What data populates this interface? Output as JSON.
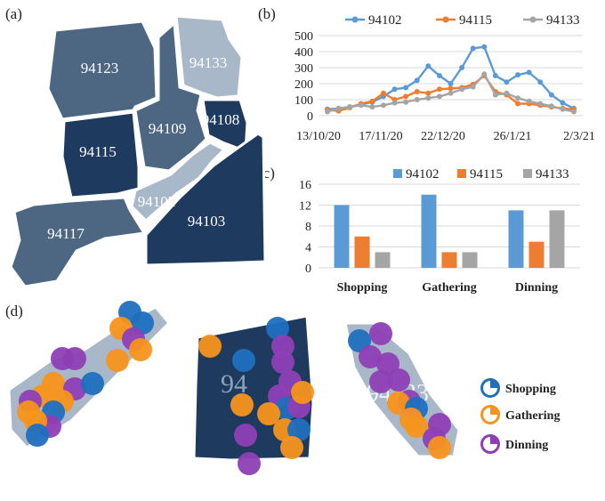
{
  "panels": {
    "a": "(a)",
    "b": "(b)",
    "c": "(c)",
    "d": "(d)"
  },
  "colors": {
    "series_94102": "#5b9bd5",
    "series_94115": "#ed7d31",
    "series_94133": "#a5a5a5",
    "map_dark": "#1f3a5f",
    "map_mid": "#4d6782",
    "map_light": "#a9b8c8",
    "shopping": "#1f6fbf",
    "gathering": "#f7931e",
    "dinning": "#8e3fb5"
  },
  "map": {
    "regions": [
      {
        "id": "94123",
        "label": "94123",
        "shade": "mid"
      },
      {
        "id": "94133",
        "label": "94133",
        "shade": "light"
      },
      {
        "id": "94109",
        "label": "94109",
        "shade": "mid"
      },
      {
        "id": "94108",
        "label": "94108",
        "shade": "dark"
      },
      {
        "id": "94115",
        "label": "94115",
        "shade": "dark"
      },
      {
        "id": "94102",
        "label": "94102",
        "shade": "light"
      },
      {
        "id": "94103",
        "label": "94103",
        "shade": "dark"
      },
      {
        "id": "94117",
        "label": "94117",
        "shade": "mid"
      }
    ]
  },
  "chart_data": [
    {
      "type": "line",
      "x_tick_labels": [
        "13/10/20",
        "17/11/20",
        "22/12/20",
        "26/1/21",
        "2/3/21"
      ],
      "ylim": [
        0,
        500
      ],
      "y_ticks": [
        0,
        100,
        200,
        300,
        400,
        500
      ],
      "grid": true,
      "legend_position": "top",
      "series": [
        {
          "name": "94102",
          "values": [
            40,
            45,
            55,
            70,
            85,
            120,
            165,
            175,
            220,
            310,
            250,
            200,
            300,
            420,
            430,
            250,
            210,
            255,
            270,
            210,
            130,
            80,
            45
          ]
        },
        {
          "name": "94115",
          "values": [
            35,
            30,
            50,
            75,
            90,
            140,
            100,
            120,
            150,
            140,
            165,
            170,
            175,
            195,
            250,
            150,
            130,
            75,
            75,
            65,
            55,
            45,
            40
          ]
        },
        {
          "name": "94133",
          "values": [
            25,
            45,
            55,
            65,
            55,
            65,
            80,
            85,
            100,
            110,
            120,
            140,
            165,
            180,
            260,
            130,
            140,
            110,
            90,
            75,
            60,
            40,
            25
          ]
        }
      ]
    },
    {
      "type": "bar",
      "categories": [
        "Shopping",
        "Gathering",
        "Dinning"
      ],
      "ylim": [
        0,
        16
      ],
      "y_ticks": [
        0,
        4,
        8,
        12,
        16
      ],
      "grid": true,
      "legend_position": "top",
      "series": [
        {
          "name": "94102",
          "values": [
            12,
            14,
            11
          ]
        },
        {
          "name": "94115",
          "values": [
            6,
            3,
            5
          ]
        },
        {
          "name": "94133",
          "values": [
            3,
            3,
            11
          ]
        }
      ]
    }
  ],
  "detail_maps": {
    "maps": [
      {
        "id": "94102",
        "watermark": ""
      },
      {
        "id": "94108",
        "watermark": "94"
      },
      {
        "id": "94133",
        "watermark": "94133"
      }
    ],
    "legend": [
      {
        "key": "shopping",
        "label": "Shopping"
      },
      {
        "key": "gathering",
        "label": "Gathering"
      },
      {
        "key": "dinning",
        "label": "Dinning"
      }
    ]
  }
}
